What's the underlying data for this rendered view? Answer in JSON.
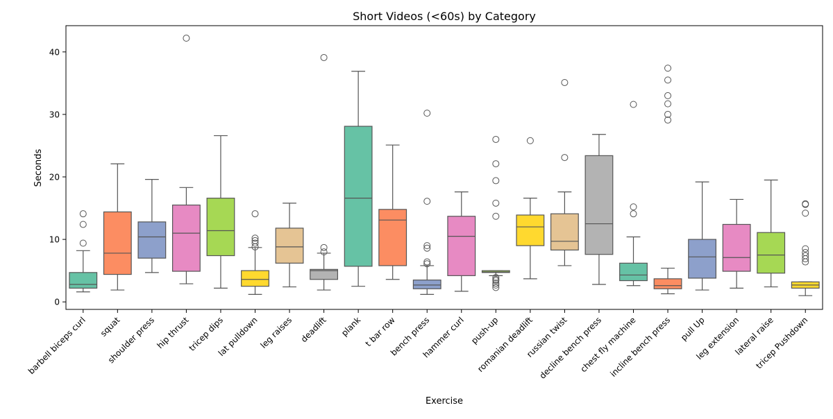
{
  "chart_data": {
    "type": "box",
    "title": "Short Videos (<60s) by Category",
    "xlabel": "Exercise",
    "ylabel": "Seconds",
    "ylim": [
      -1.2,
      44.2
    ],
    "yticks": [
      0,
      10,
      20,
      30,
      40
    ],
    "grid": false,
    "palette": [
      "#66c2a5",
      "#fc8d62",
      "#8da0cb",
      "#e78ac3",
      "#a6d854",
      "#ffd92f",
      "#e5c494",
      "#b3b3b3"
    ],
    "categories": [
      {
        "name": "barbell biceps curl",
        "q1": 2.2,
        "median": 2.8,
        "q3": 4.7,
        "whislo": 1.6,
        "whishi": 8.2,
        "fliers": [
          9.4,
          12.4,
          14.1
        ]
      },
      {
        "name": "squat",
        "q1": 4.4,
        "median": 7.8,
        "q3": 14.4,
        "whislo": 1.9,
        "whishi": 22.1,
        "fliers": []
      },
      {
        "name": "shoulder press",
        "q1": 7.0,
        "median": 10.4,
        "q3": 12.8,
        "whislo": 4.7,
        "whishi": 19.6,
        "fliers": []
      },
      {
        "name": "hip thrust",
        "q1": 4.9,
        "median": 11.0,
        "q3": 15.5,
        "whislo": 2.9,
        "whishi": 18.3,
        "fliers": [
          42.2
        ]
      },
      {
        "name": "tricep dips",
        "q1": 7.4,
        "median": 11.4,
        "q3": 16.6,
        "whislo": 2.2,
        "whishi": 26.6,
        "fliers": []
      },
      {
        "name": "lat pulldown",
        "q1": 2.5,
        "median": 3.6,
        "q3": 5.0,
        "whislo": 1.2,
        "whishi": 8.7,
        "fliers": [
          8.8,
          9.4,
          9.8,
          10.2,
          14.1
        ]
      },
      {
        "name": "leg raises",
        "q1": 6.2,
        "median": 8.8,
        "q3": 11.8,
        "whislo": 2.4,
        "whishi": 15.8,
        "fliers": []
      },
      {
        "name": "deadlift",
        "q1": 3.6,
        "median": 5.0,
        "q3": 5.2,
        "whislo": 1.9,
        "whishi": 7.8,
        "fliers": [
          8.0,
          8.7,
          39.1
        ]
      },
      {
        "name": "plank",
        "q1": 5.7,
        "median": 16.6,
        "q3": 28.1,
        "whislo": 2.5,
        "whishi": 36.9,
        "fliers": []
      },
      {
        "name": "t bar row",
        "q1": 5.8,
        "median": 13.1,
        "q3": 14.8,
        "whislo": 3.6,
        "whishi": 25.1,
        "fliers": []
      },
      {
        "name": "bench press",
        "q1": 2.1,
        "median": 2.7,
        "q3": 3.5,
        "whislo": 1.2,
        "whishi": 5.8,
        "fliers": [
          6.1,
          6.4,
          8.6,
          9.0,
          16.1,
          30.2
        ]
      },
      {
        "name": "hammer curl",
        "q1": 4.2,
        "median": 10.5,
        "q3": 13.7,
        "whislo": 1.7,
        "whishi": 17.6,
        "fliers": []
      },
      {
        "name": "push-up",
        "q1": 4.7,
        "median": 4.8,
        "q3": 5.0,
        "whislo": 4.2,
        "whishi": 5.0,
        "fliers": [
          2.3,
          2.7,
          3.0,
          3.4,
          3.6,
          3.9,
          13.7,
          15.8,
          19.4,
          22.1,
          26.0
        ]
      },
      {
        "name": "romanian deadlift",
        "q1": 9.0,
        "median": 12.0,
        "q3": 13.9,
        "whislo": 3.7,
        "whishi": 16.6,
        "fliers": [
          25.8
        ]
      },
      {
        "name": "russian twist",
        "q1": 8.3,
        "median": 9.7,
        "q3": 14.1,
        "whislo": 5.8,
        "whishi": 17.6,
        "fliers": [
          23.1,
          35.1
        ]
      },
      {
        "name": "decline bench press",
        "q1": 7.6,
        "median": 12.5,
        "q3": 23.4,
        "whislo": 2.8,
        "whishi": 26.8,
        "fliers": []
      },
      {
        "name": "chest fly machine",
        "q1": 3.4,
        "median": 4.3,
        "q3": 6.2,
        "whislo": 2.6,
        "whishi": 10.4,
        "fliers": [
          14.1,
          15.2,
          31.6
        ]
      },
      {
        "name": "incline bench press",
        "q1": 2.1,
        "median": 2.6,
        "q3": 3.7,
        "whislo": 1.3,
        "whishi": 5.4,
        "fliers": [
          29.1,
          30.0,
          31.7,
          33.0,
          35.5,
          37.4
        ]
      },
      {
        "name": "pull Up",
        "q1": 3.8,
        "median": 7.2,
        "q3": 10.0,
        "whislo": 1.9,
        "whishi": 19.2,
        "fliers": []
      },
      {
        "name": "leg extension",
        "q1": 4.9,
        "median": 7.1,
        "q3": 12.4,
        "whislo": 2.2,
        "whishi": 16.4,
        "fliers": []
      },
      {
        "name": "lateral raise",
        "q1": 4.6,
        "median": 7.5,
        "q3": 11.1,
        "whislo": 2.4,
        "whishi": 19.5,
        "fliers": []
      },
      {
        "name": "tricep Pushdown",
        "q1": 2.2,
        "median": 2.7,
        "q3": 3.2,
        "whislo": 1.0,
        "whishi": 3.2,
        "fliers": [
          6.4,
          6.9,
          7.4,
          7.9,
          8.5,
          14.2,
          15.6,
          15.7
        ]
      }
    ]
  }
}
